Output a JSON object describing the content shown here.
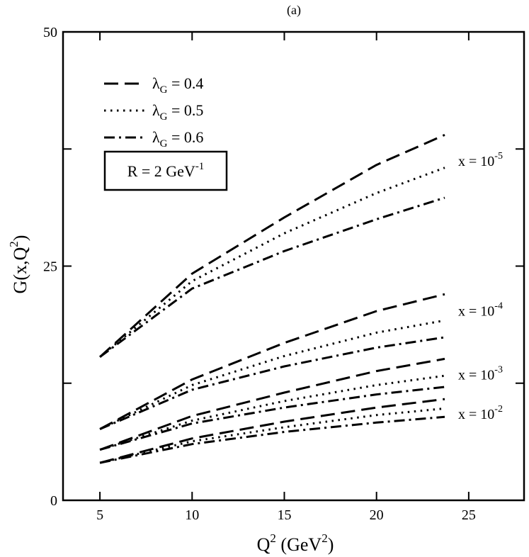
{
  "chart_data": {
    "type": "line",
    "panel_label": "(a)",
    "xlabel": {
      "base": "Q",
      "sup": "2",
      "unit": " (GeV",
      "unit_sup": "2",
      "unit_close": ")"
    },
    "ylabel": {
      "prefix": "G(x,Q",
      "sup": "2",
      "suffix": ")"
    },
    "xlim": [
      3,
      28
    ],
    "ylim": [
      0,
      50
    ],
    "x_ticks": [
      5,
      10,
      15,
      20,
      25
    ],
    "x_tick_labels": [
      "5",
      "10",
      "15",
      "20",
      "25"
    ],
    "y_ticks": [
      0,
      12.5,
      25,
      37.5,
      50
    ],
    "y_tick_labels": [
      "0",
      "",
      "25",
      "",
      "50"
    ],
    "grid": false,
    "legend_position": "top-left",
    "legend": [
      {
        "style": "dashed",
        "symbol": "λ",
        "sub": "G",
        "text": " = 0.4"
      },
      {
        "style": "dotted",
        "symbol": "λ",
        "sub": "G",
        "text": " = 0.5"
      },
      {
        "style": "dashdot",
        "symbol": "λ",
        "sub": "G",
        "text": " = 0.6"
      }
    ],
    "annotation_box": {
      "text": "R = 2 GeV",
      "sup": "-1"
    },
    "curve_labels": [
      {
        "prefix": "x = 10",
        "sup": "-5",
        "anchor_y": 36.0
      },
      {
        "prefix": "x = 10",
        "sup": "-4",
        "anchor_y": 20.0
      },
      {
        "prefix": "x = 10",
        "sup": "-3",
        "anchor_y": 13.2
      },
      {
        "prefix": "x = 10",
        "sup": "-2",
        "anchor_y": 9.0
      }
    ],
    "x": [
      5,
      10,
      15,
      20,
      23.7
    ],
    "series": [
      {
        "group": "x = 10^-5",
        "style": "dashed",
        "values": [
          15.3,
          24.2,
          30.2,
          35.8,
          39.0
        ]
      },
      {
        "group": "x = 10^-5",
        "style": "dotted",
        "values": [
          15.3,
          23.4,
          28.5,
          32.8,
          35.5
        ]
      },
      {
        "group": "x = 10^-5",
        "style": "dashdot",
        "values": [
          15.3,
          22.6,
          26.6,
          30.0,
          32.3
        ]
      },
      {
        "group": "x = 10^-4",
        "style": "dashed",
        "values": [
          7.6,
          12.9,
          16.8,
          20.2,
          22.0
        ]
      },
      {
        "group": "x = 10^-4",
        "style": "dotted",
        "values": [
          7.6,
          12.3,
          15.4,
          17.9,
          19.2
        ]
      },
      {
        "group": "x = 10^-4",
        "style": "dashdot",
        "values": [
          7.6,
          11.8,
          14.3,
          16.3,
          17.4
        ]
      },
      {
        "group": "x = 10^-3",
        "style": "dashed",
        "values": [
          5.4,
          9.0,
          11.5,
          13.8,
          15.1
        ]
      },
      {
        "group": "x = 10^-3",
        "style": "dotted",
        "values": [
          5.4,
          8.5,
          10.6,
          12.3,
          13.3
        ]
      },
      {
        "group": "x = 10^-3",
        "style": "dashdot",
        "values": [
          5.4,
          8.2,
          9.9,
          11.3,
          12.1
        ]
      },
      {
        "group": "x = 10^-2",
        "style": "dashed",
        "values": [
          4.0,
          6.6,
          8.4,
          9.9,
          10.8
        ]
      },
      {
        "group": "x = 10^-2",
        "style": "dotted",
        "values": [
          4.0,
          6.3,
          7.8,
          9.1,
          9.8
        ]
      },
      {
        "group": "x = 10^-2",
        "style": "dashdot",
        "values": [
          4.0,
          6.0,
          7.3,
          8.3,
          8.9
        ]
      }
    ]
  }
}
